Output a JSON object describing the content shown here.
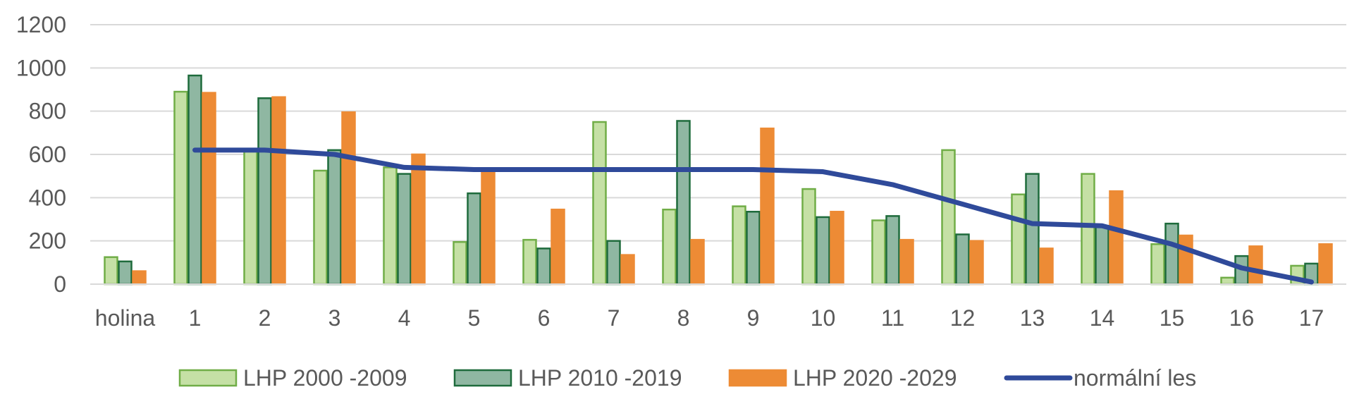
{
  "chart_data": {
    "type": "bar",
    "title": "",
    "xlabel": "",
    "ylabel": "",
    "ylim": [
      0,
      1200
    ],
    "yticks": [
      "0",
      "200",
      "400",
      "600",
      "800",
      "1000",
      "1200"
    ],
    "grid": true,
    "legend_position": "bottom",
    "categories": [
      "holina",
      "1",
      "2",
      "3",
      "4",
      "5",
      "6",
      "7",
      "8",
      "9",
      "10",
      "11",
      "12",
      "13",
      "14",
      "15",
      "16",
      "17"
    ],
    "series": [
      {
        "name": "LHP 2000 -2009",
        "kind": "bar",
        "fill": "#c5e0a5",
        "stroke": "#70ad47",
        "values": [
          125,
          890,
          615,
          525,
          540,
          195,
          205,
          750,
          345,
          360,
          440,
          295,
          620,
          415,
          510,
          185,
          30,
          85
        ]
      },
      {
        "name": "LHP 2010 -2019",
        "kind": "bar",
        "fill": "#8fb7a2",
        "stroke": "#1e6b3c",
        "values": [
          105,
          965,
          860,
          620,
          510,
          420,
          165,
          200,
          755,
          335,
          310,
          315,
          230,
          510,
          270,
          280,
          130,
          95
        ]
      },
      {
        "name": "LHP 2020 -2029",
        "kind": "bar",
        "fill": "#ed8b35",
        "stroke": "#ed8b35",
        "values": [
          60,
          885,
          865,
          795,
          600,
          530,
          345,
          135,
          205,
          720,
          335,
          205,
          200,
          165,
          430,
          225,
          175,
          185
        ]
      },
      {
        "name": "normální les",
        "kind": "line",
        "stroke": "#2f4a9a",
        "values": [
          null,
          620,
          620,
          600,
          540,
          530,
          530,
          530,
          530,
          530,
          520,
          460,
          370,
          280,
          270,
          185,
          75,
          10
        ]
      }
    ]
  }
}
